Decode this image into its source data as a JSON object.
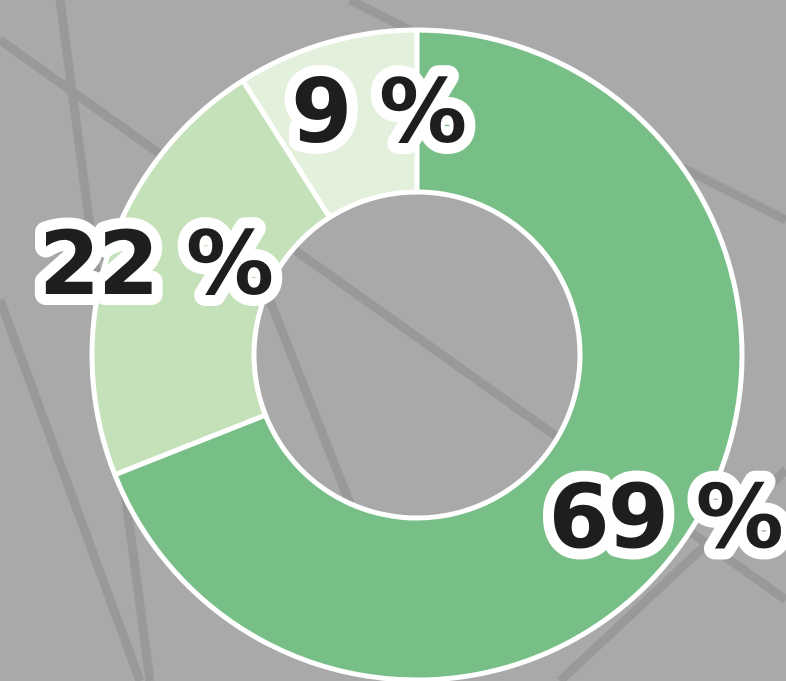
{
  "chart_data": {
    "type": "donut",
    "values": [
      69,
      22,
      9
    ],
    "value_labels": [
      "69 %",
      "22 %",
      "9 %"
    ],
    "colors": [
      "#78bf87",
      "#c5e1b9",
      "#e3f0dc"
    ]
  }
}
